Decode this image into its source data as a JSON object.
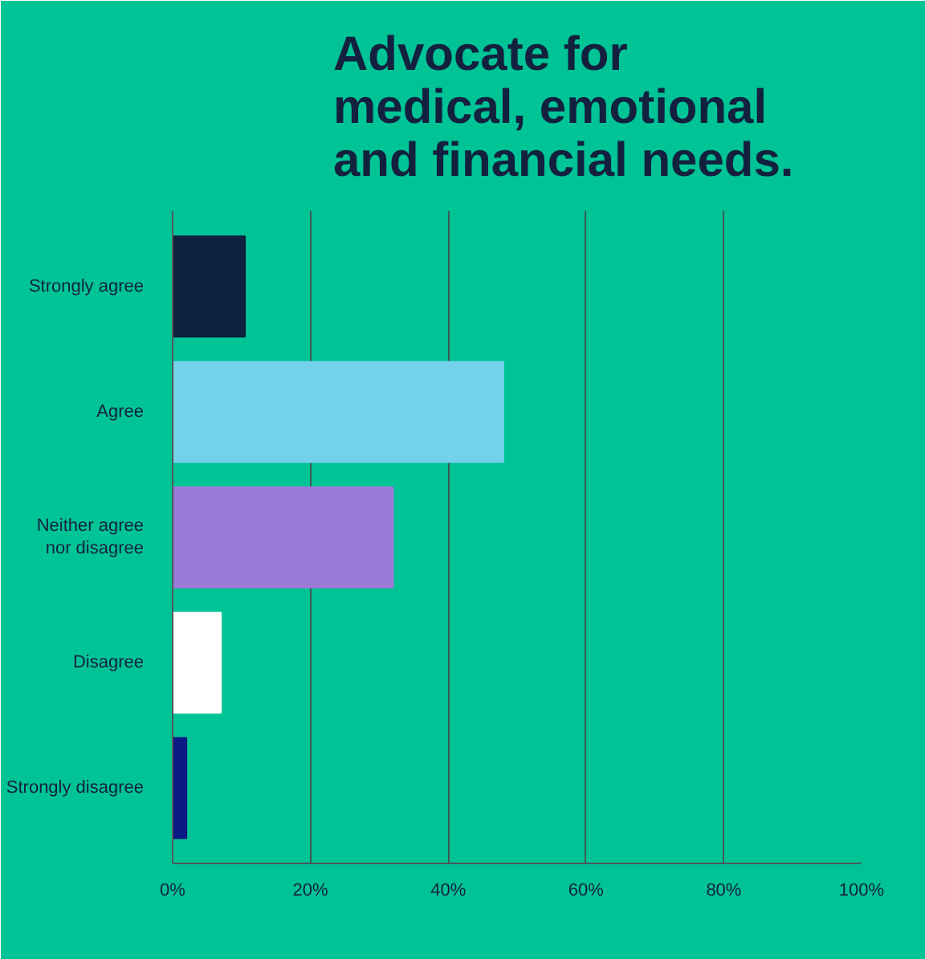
{
  "chart_data": {
    "type": "bar",
    "orientation": "horizontal",
    "title": "Advocate for\nmedical, emotional\nand financial needs.",
    "categories": [
      "Strongly agree",
      "Agree",
      "Neither agree\nnor disagree",
      "Disagree",
      "Strongly disagree"
    ],
    "values": [
      10.5,
      48,
      32,
      7,
      2
    ],
    "colors": [
      "#0e213e",
      "#74d1ea",
      "#9b7ad8",
      "#ffffff",
      "#0a1a85"
    ],
    "xlim": [
      0,
      100
    ],
    "xticks": [
      {
        "value": 0,
        "label": "0%"
      },
      {
        "value": 20,
        "label": "20%"
      },
      {
        "value": 40,
        "label": "40%"
      },
      {
        "value": 60,
        "label": "60%"
      },
      {
        "value": 80,
        "label": "80%"
      },
      {
        "value": 100,
        "label": "100%"
      }
    ],
    "grid": "x"
  }
}
